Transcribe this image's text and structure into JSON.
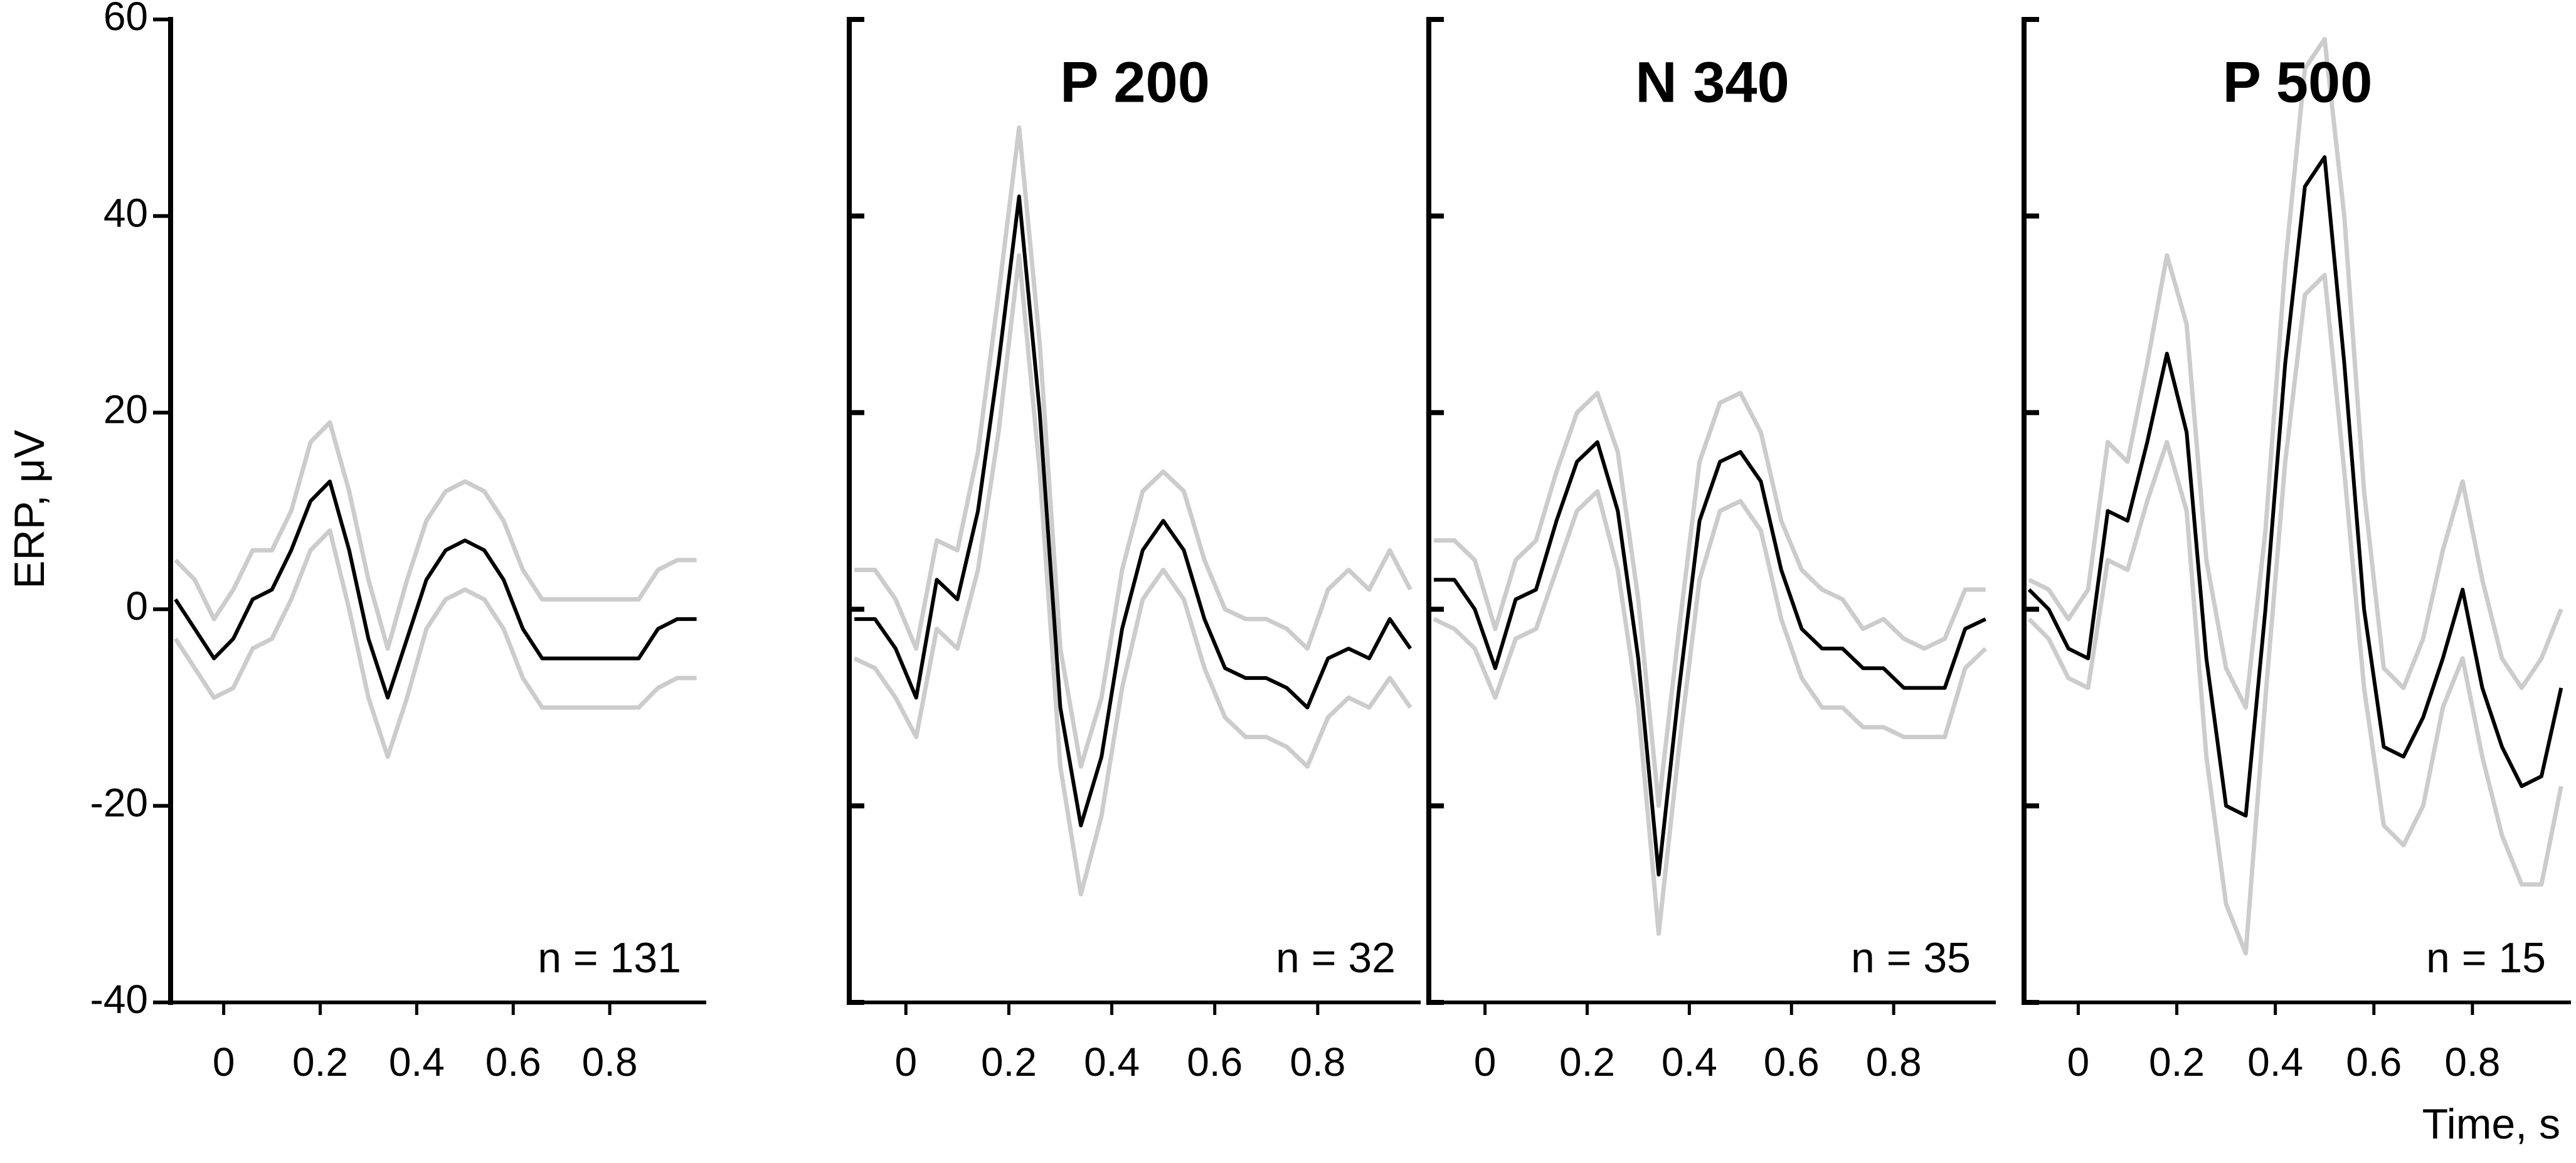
{
  "chart_data": [
    {
      "type": "line",
      "ylabel": "ERP, μV",
      "annotation": "n = 131",
      "xlim": [
        -0.11,
        1.0
      ],
      "xticks": [
        0,
        0.2,
        0.4,
        0.6,
        0.8
      ],
      "ylim": [
        -40,
        60
      ],
      "yticks": [
        -40,
        -20,
        0,
        20,
        40,
        60
      ],
      "yticklabels": true,
      "x": [
        -0.1,
        -0.06,
        -0.02,
        0.02,
        0.06,
        0.1,
        0.14,
        0.18,
        0.22,
        0.26,
        0.3,
        0.34,
        0.38,
        0.42,
        0.46,
        0.5,
        0.54,
        0.58,
        0.62,
        0.66,
        0.7,
        0.74,
        0.78,
        0.82,
        0.86,
        0.9,
        0.94,
        0.98
      ],
      "series": [
        {
          "color": "#cccccc",
          "values": [
            5,
            3,
            -1,
            2,
            6,
            6,
            10,
            17,
            19,
            12,
            3,
            -4,
            3,
            9,
            12,
            13,
            12,
            9,
            4,
            1,
            1,
            1,
            1,
            1,
            1,
            4,
            5,
            5
          ]
        },
        {
          "color": "#cccccc",
          "values": [
            -3,
            -6,
            -9,
            -8,
            -4,
            -3,
            1,
            6,
            8,
            0,
            -9,
            -15,
            -9,
            -2,
            1,
            2,
            1,
            -2,
            -7,
            -10,
            -10,
            -10,
            -10,
            -10,
            -10,
            -8,
            -7,
            -7
          ]
        },
        {
          "color": "#000000",
          "values": [
            1,
            -2,
            -5,
            -3,
            1,
            2,
            6,
            11,
            13,
            6,
            -3,
            -9,
            -3,
            3,
            6,
            7,
            6,
            3,
            -2,
            -5,
            -5,
            -5,
            -5,
            -5,
            -5,
            -2,
            -1,
            -1
          ]
        }
      ]
    },
    {
      "type": "line",
      "title": "P 200",
      "annotation": "n = 32",
      "xlim": [
        -0.11,
        1.0
      ],
      "xticks": [
        0,
        0.2,
        0.4,
        0.6,
        0.8
      ],
      "ylim": [
        -40,
        60
      ],
      "yticks": [
        -40,
        -20,
        0,
        20,
        40,
        60
      ],
      "yticklabels": false,
      "x": [
        -0.1,
        -0.06,
        -0.02,
        0.02,
        0.06,
        0.1,
        0.14,
        0.18,
        0.22,
        0.26,
        0.3,
        0.34,
        0.38,
        0.42,
        0.46,
        0.5,
        0.54,
        0.58,
        0.62,
        0.66,
        0.7,
        0.74,
        0.78,
        0.82,
        0.86,
        0.9,
        0.94,
        0.98
      ],
      "series": [
        {
          "color": "#cccccc",
          "values": [
            4,
            4,
            1,
            -4,
            7,
            6,
            16,
            32,
            49,
            27,
            -4,
            -16,
            -9,
            4,
            12,
            14,
            12,
            5,
            0,
            -1,
            -1,
            -2,
            -4,
            2,
            4,
            2,
            6,
            2
          ]
        },
        {
          "color": "#cccccc",
          "values": [
            -5,
            -6,
            -9,
            -13,
            -2,
            -4,
            4,
            18,
            36,
            14,
            -16,
            -29,
            -21,
            -8,
            1,
            4,
            1,
            -6,
            -11,
            -13,
            -13,
            -14,
            -16,
            -11,
            -9,
            -10,
            -7,
            -10
          ]
        },
        {
          "color": "#000000",
          "values": [
            -1,
            -1,
            -4,
            -9,
            3,
            1,
            10,
            25,
            42,
            20,
            -10,
            -22,
            -15,
            -2,
            6,
            9,
            6,
            -1,
            -6,
            -7,
            -7,
            -8,
            -10,
            -5,
            -4,
            -5,
            -1,
            -4
          ]
        }
      ]
    },
    {
      "type": "line",
      "title": "N 340",
      "annotation": "n = 35",
      "xlim": [
        -0.11,
        1.0
      ],
      "xticks": [
        0,
        0.2,
        0.4,
        0.6,
        0.8
      ],
      "ylim": [
        -40,
        60
      ],
      "yticks": [
        -40,
        -20,
        0,
        20,
        40,
        60
      ],
      "yticklabels": false,
      "x": [
        -0.1,
        -0.06,
        -0.02,
        0.02,
        0.06,
        0.1,
        0.14,
        0.18,
        0.22,
        0.26,
        0.3,
        0.34,
        0.38,
        0.42,
        0.46,
        0.5,
        0.54,
        0.58,
        0.62,
        0.66,
        0.7,
        0.74,
        0.78,
        0.82,
        0.86,
        0.9,
        0.94,
        0.98
      ],
      "series": [
        {
          "color": "#cccccc",
          "values": [
            7,
            7,
            5,
            -2,
            5,
            7,
            14,
            20,
            22,
            16,
            1,
            -20,
            -2,
            15,
            21,
            22,
            18,
            9,
            4,
            2,
            1,
            -2,
            -1,
            -3,
            -4,
            -3,
            2,
            2
          ]
        },
        {
          "color": "#cccccc",
          "values": [
            -1,
            -2,
            -4,
            -9,
            -3,
            -2,
            4,
            10,
            12,
            4,
            -10,
            -33,
            -14,
            3,
            10,
            11,
            8,
            -1,
            -7,
            -10,
            -10,
            -12,
            -12,
            -13,
            -13,
            -13,
            -6,
            -4
          ]
        },
        {
          "color": "#000000",
          "values": [
            3,
            3,
            0,
            -6,
            1,
            2,
            9,
            15,
            17,
            10,
            -5,
            -27,
            -8,
            9,
            15,
            16,
            13,
            4,
            -2,
            -4,
            -4,
            -6,
            -6,
            -8,
            -8,
            -8,
            -2,
            -1
          ]
        }
      ]
    },
    {
      "type": "line",
      "title": "P 500",
      "annotation": "n = 15",
      "xlabel": "Time, s",
      "xlim": [
        -0.11,
        1.0
      ],
      "xticks": [
        0,
        0.2,
        0.4,
        0.6,
        0.8
      ],
      "ylim": [
        -40,
        60
      ],
      "yticks": [
        -40,
        -20,
        0,
        20,
        40,
        60
      ],
      "yticklabels": false,
      "x": [
        -0.1,
        -0.06,
        -0.02,
        0.02,
        0.06,
        0.1,
        0.14,
        0.18,
        0.22,
        0.26,
        0.3,
        0.34,
        0.38,
        0.42,
        0.46,
        0.5,
        0.54,
        0.58,
        0.62,
        0.66,
        0.7,
        0.74,
        0.78,
        0.82,
        0.86,
        0.9,
        0.94,
        0.98
      ],
      "series": [
        {
          "color": "#cccccc",
          "values": [
            3,
            2,
            -1,
            2,
            17,
            15,
            25,
            36,
            29,
            5,
            -6,
            -10,
            8,
            35,
            55,
            58,
            40,
            12,
            -6,
            -8,
            -3,
            6,
            13,
            3,
            -5,
            -8,
            -5,
            0
          ]
        },
        {
          "color": "#cccccc",
          "values": [
            -1,
            -3,
            -7,
            -8,
            5,
            4,
            11,
            17,
            10,
            -15,
            -30,
            -35,
            -9,
            15,
            32,
            34,
            14,
            -8,
            -22,
            -24,
            -20,
            -10,
            -5,
            -15,
            -23,
            -28,
            -28,
            -18
          ]
        },
        {
          "color": "#000000",
          "values": [
            2,
            0,
            -4,
            -5,
            10,
            9,
            17,
            26,
            18,
            -5,
            -20,
            -21,
            0,
            25,
            43,
            46,
            25,
            0,
            -14,
            -15,
            -11,
            -5,
            2,
            -8,
            -14,
            -18,
            -17,
            -8
          ]
        }
      ]
    }
  ]
}
